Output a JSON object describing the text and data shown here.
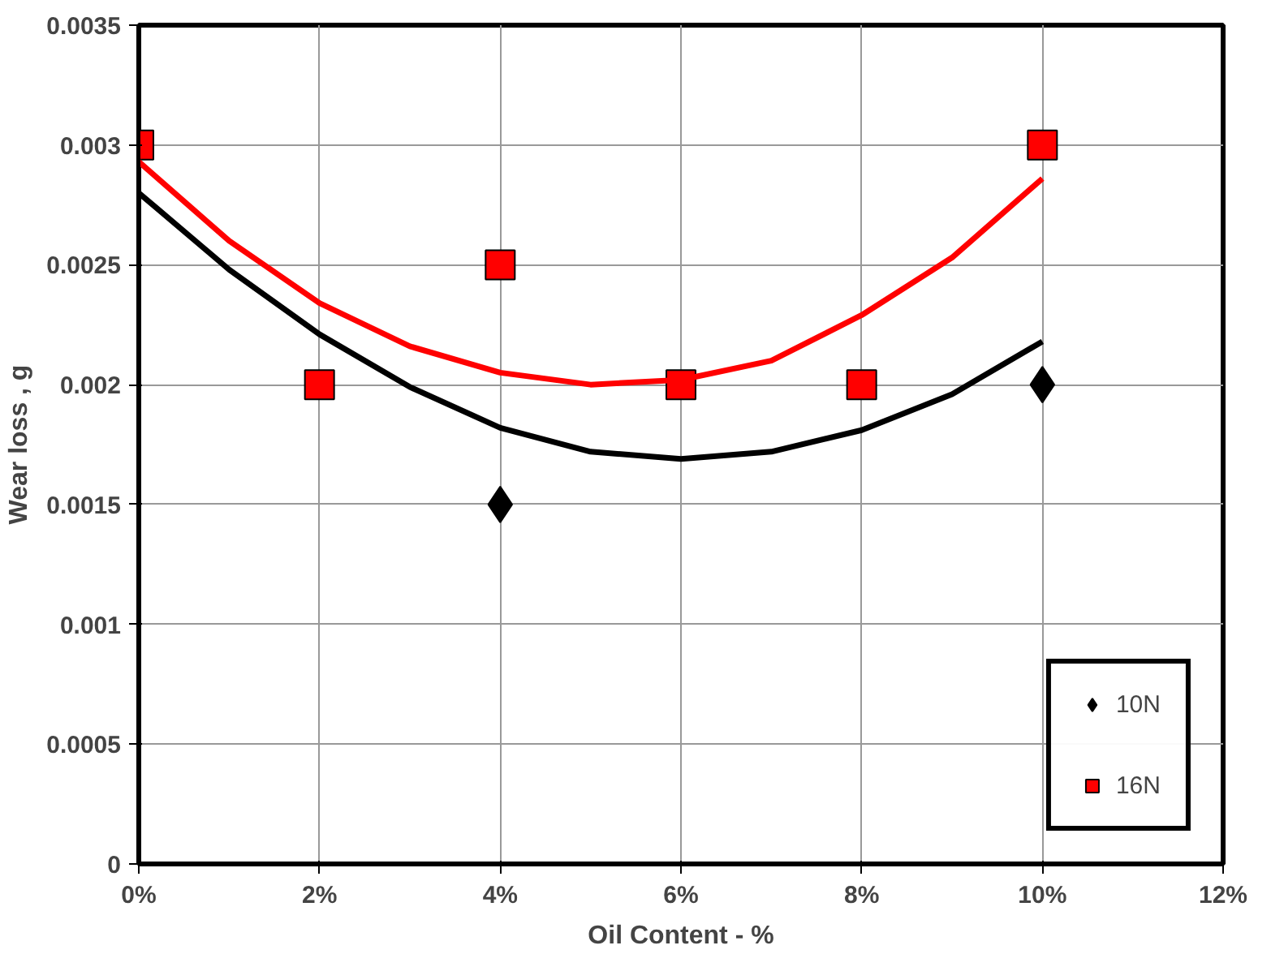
{
  "chart_data": {
    "type": "scatter",
    "xlabel": "Oil Content - %",
    "ylabel": "Wear loss , g",
    "x": [
      0,
      2,
      4,
      6,
      8,
      10
    ],
    "series": [
      {
        "name": "10N",
        "color": "#000000",
        "marker": "diamond",
        "values": [
          null,
          null,
          0.0015,
          null,
          null,
          0.002
        ]
      },
      {
        "name": "16N",
        "color": "#ff0000",
        "marker": "square",
        "values": [
          0.003,
          0.002,
          0.0025,
          0.002,
          0.002,
          0.003
        ]
      },
      {
        "type": "line",
        "color": "#000000",
        "x": [
          0,
          1,
          2,
          3,
          4,
          5,
          6,
          7,
          8,
          9,
          10
        ],
        "values": [
          0.0028,
          0.00248,
          0.00221,
          0.00199,
          0.00182,
          0.00172,
          0.00169,
          0.00172,
          0.00181,
          0.00196,
          0.00218
        ]
      },
      {
        "type": "line",
        "color": "#ff0000",
        "x": [
          0,
          1,
          2,
          3,
          4,
          5,
          6,
          7,
          8,
          9,
          10
        ],
        "values": [
          0.00293,
          0.0026,
          0.00234,
          0.00216,
          0.00205,
          0.002,
          0.00202,
          0.0021,
          0.00229,
          0.00253,
          0.00286
        ]
      }
    ],
    "xlim": [
      0,
      12
    ],
    "xticks": [
      {
        "value": 0,
        "label": "0%"
      },
      {
        "value": 2,
        "label": "2%"
      },
      {
        "value": 4,
        "label": "4%"
      },
      {
        "value": 6,
        "label": "6%"
      },
      {
        "value": 8,
        "label": "8%"
      },
      {
        "value": 10,
        "label": "10%"
      },
      {
        "value": 12,
        "label": "12%"
      }
    ],
    "ylim": [
      0,
      0.0035
    ],
    "yticks": [
      0,
      0.0005,
      0.001,
      0.0015,
      0.002,
      0.0025,
      0.003,
      0.0035
    ],
    "grid": true,
    "legend": "bottom right"
  }
}
